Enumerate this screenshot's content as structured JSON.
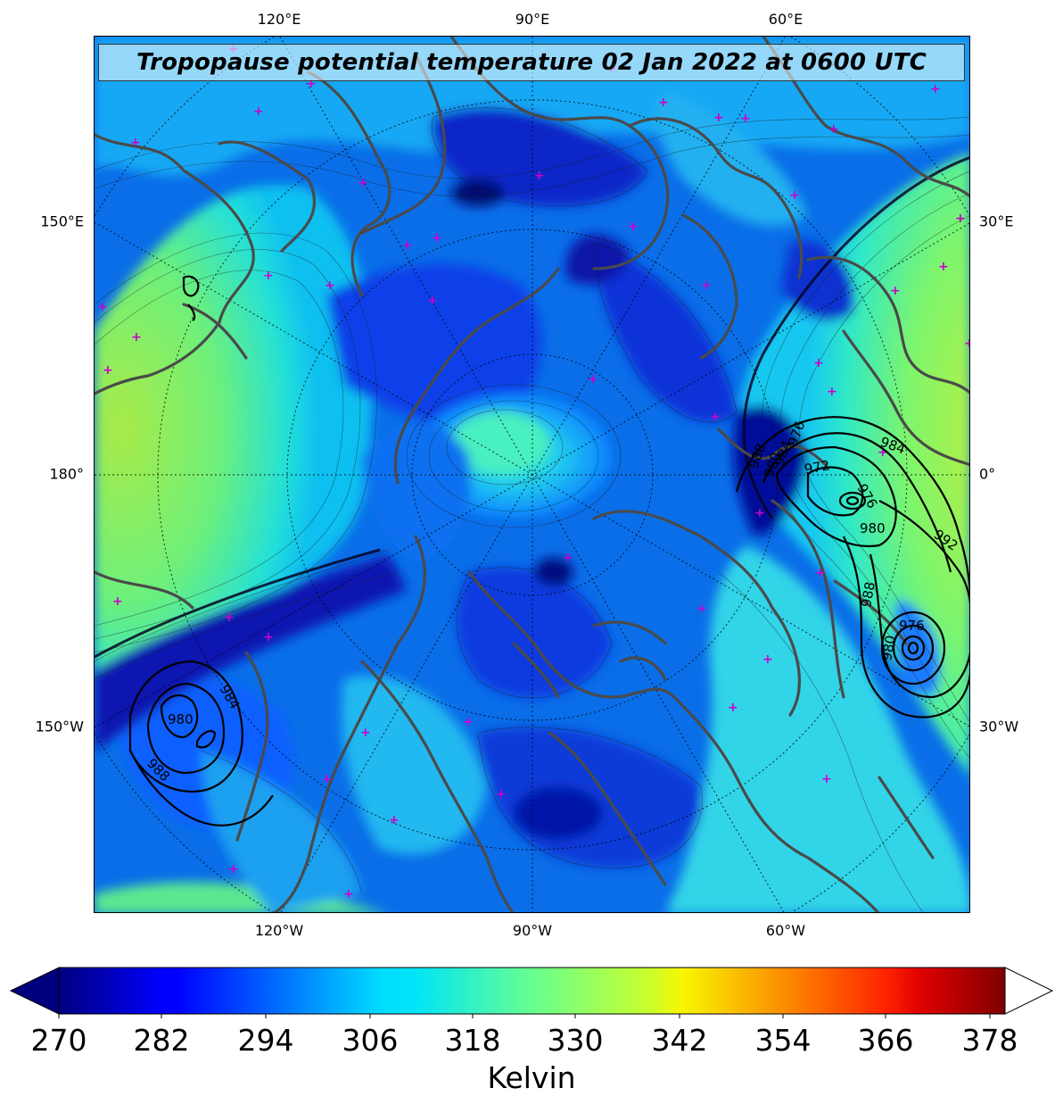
{
  "title": "Tropopause potential temperature 02 Jan 2022 at 0600 UTC",
  "map": {
    "projection": "north-polar-stereographic",
    "top_labels": [
      "120°E",
      "90°E",
      "60°E"
    ],
    "bottom_labels": [
      "120°W",
      "90°W",
      "60°W"
    ],
    "left_labels": [
      "150°E",
      "180°",
      "150°W"
    ],
    "right_labels": [
      "30°E",
      "0°",
      "30°W"
    ],
    "field_variable": "tropopause potential temperature",
    "field_units": "Kelvin",
    "contour_color_field": "#3a3a3a",
    "coastline_color": "#4a4a4a",
    "marker_color": "#cc00cc",
    "marker_symbol": "+",
    "pressure_contours_color": "#000000",
    "pressure_labels": [
      "988",
      "984",
      "980",
      "976",
      "972",
      "976",
      "984",
      "992",
      "980",
      "988",
      "980",
      "976",
      "980",
      "984",
      "988"
    ]
  },
  "colorbar": {
    "colormap": "jet",
    "min": 270,
    "max": 378,
    "tick_labels": [
      "270",
      "282",
      "294",
      "306",
      "318",
      "330",
      "342",
      "354",
      "366",
      "378"
    ],
    "extend": "both",
    "label": "Kelvin"
  }
}
